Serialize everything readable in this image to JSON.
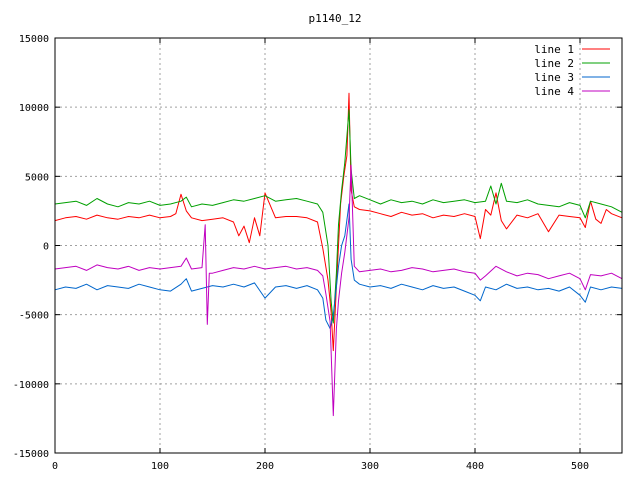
{
  "chart_data": {
    "type": "line",
    "title": "p1140_12",
    "xlabel": "",
    "ylabel": "",
    "xlim": [
      0,
      540
    ],
    "ylim": [
      -15000,
      15000
    ],
    "xticks": [
      0,
      100,
      200,
      300,
      400,
      500
    ],
    "yticks": [
      -15000,
      -10000,
      -5000,
      0,
      5000,
      10000,
      15000
    ],
    "grid": true,
    "legend_position": "top-right",
    "series": [
      {
        "name": "line 1",
        "color": "#ff0000",
        "x": [
          0,
          10,
          20,
          30,
          40,
          50,
          60,
          70,
          80,
          90,
          100,
          110,
          115,
          120,
          125,
          130,
          140,
          150,
          160,
          170,
          175,
          180,
          185,
          190,
          195,
          200,
          210,
          220,
          230,
          240,
          250,
          255,
          260,
          263,
          265,
          268,
          270,
          272,
          275,
          278,
          280,
          282,
          285,
          290,
          300,
          310,
          320,
          330,
          340,
          350,
          360,
          370,
          380,
          390,
          400,
          405,
          410,
          415,
          420,
          425,
          430,
          440,
          450,
          460,
          470,
          480,
          490,
          500,
          505,
          510,
          515,
          520,
          525,
          530,
          540
        ],
        "y": [
          1800,
          2000,
          2100,
          1900,
          2200,
          2000,
          1900,
          2100,
          2000,
          2200,
          2000,
          2100,
          2300,
          3700,
          2500,
          2000,
          1800,
          1900,
          2000,
          1700,
          700,
          1400,
          200,
          2000,
          700,
          3800,
          2000,
          2100,
          2100,
          2000,
          1700,
          -200,
          -2500,
          -4800,
          -7600,
          -3000,
          0,
          3000,
          5000,
          6500,
          11000,
          4000,
          2800,
          2600,
          2500,
          2300,
          2100,
          2400,
          2200,
          2300,
          2000,
          2200,
          2100,
          2300,
          2100,
          500,
          2600,
          2200,
          3800,
          1800,
          1200,
          2200,
          2000,
          2300,
          1000,
          2200,
          2100,
          2000,
          1300,
          3200,
          1900,
          1600,
          2600,
          2300,
          2000
        ]
      },
      {
        "name": "line 2",
        "color": "#00a000",
        "x": [
          0,
          10,
          20,
          30,
          40,
          50,
          60,
          70,
          80,
          90,
          100,
          110,
          120,
          125,
          130,
          140,
          150,
          160,
          170,
          180,
          190,
          200,
          210,
          220,
          230,
          240,
          250,
          255,
          260,
          263,
          265,
          268,
          270,
          273,
          276,
          280,
          282,
          285,
          290,
          300,
          310,
          320,
          330,
          340,
          350,
          360,
          370,
          380,
          390,
          400,
          410,
          415,
          420,
          425,
          430,
          440,
          450,
          460,
          470,
          480,
          490,
          500,
          505,
          510,
          520,
          530,
          540
        ],
        "y": [
          3000,
          3100,
          3200,
          2900,
          3400,
          3000,
          2800,
          3100,
          3000,
          3200,
          2900,
          3000,
          3200,
          3500,
          2800,
          3000,
          2900,
          3100,
          3300,
          3200,
          3400,
          3600,
          3200,
          3300,
          3400,
          3200,
          3000,
          2400,
          0,
          -4000,
          -5600,
          -2000,
          1500,
          4000,
          6000,
          9800,
          5500,
          3400,
          3600,
          3300,
          3000,
          3300,
          3100,
          3200,
          3000,
          3300,
          3100,
          3200,
          3300,
          3100,
          3200,
          4300,
          3000,
          4500,
          3200,
          3100,
          3300,
          3000,
          2900,
          2800,
          3100,
          2900,
          2000,
          3200,
          3000,
          2800,
          2400
        ]
      },
      {
        "name": "line 3",
        "color": "#0066cc",
        "x": [
          0,
          10,
          20,
          30,
          40,
          50,
          60,
          70,
          80,
          90,
          100,
          110,
          120,
          125,
          130,
          140,
          150,
          160,
          170,
          180,
          190,
          200,
          210,
          220,
          230,
          240,
          250,
          255,
          258,
          262,
          265,
          268,
          270,
          273,
          276,
          280,
          282,
          285,
          290,
          300,
          310,
          320,
          330,
          340,
          350,
          360,
          370,
          380,
          390,
          400,
          405,
          410,
          420,
          430,
          440,
          450,
          460,
          470,
          480,
          490,
          500,
          505,
          510,
          520,
          530,
          540
        ],
        "y": [
          -3200,
          -3000,
          -3100,
          -2800,
          -3200,
          -2900,
          -3000,
          -3100,
          -2800,
          -3000,
          -3200,
          -3300,
          -2800,
          -2400,
          -3300,
          -3100,
          -2900,
          -3000,
          -2800,
          -3000,
          -2700,
          -3800,
          -3000,
          -2900,
          -3100,
          -2900,
          -3200,
          -3800,
          -5400,
          -6000,
          -5000,
          -3000,
          -1500,
          0,
          700,
          3000,
          -1000,
          -2500,
          -2800,
          -3000,
          -2900,
          -3100,
          -2800,
          -3000,
          -3200,
          -2900,
          -3100,
          -3000,
          -3300,
          -3600,
          -4000,
          -3000,
          -3200,
          -2800,
          -3100,
          -3000,
          -3200,
          -3100,
          -3300,
          -3000,
          -3600,
          -4100,
          -3000,
          -3200,
          -3000,
          -3100
        ]
      },
      {
        "name": "line 4",
        "color": "#c000c0",
        "x": [
          0,
          10,
          20,
          30,
          40,
          50,
          60,
          70,
          80,
          90,
          100,
          110,
          120,
          125,
          130,
          140,
          143,
          145,
          147,
          150,
          160,
          170,
          180,
          190,
          200,
          210,
          220,
          230,
          240,
          250,
          255,
          258,
          262,
          265,
          268,
          270,
          273,
          276,
          280,
          282,
          285,
          290,
          300,
          310,
          320,
          330,
          340,
          350,
          360,
          370,
          380,
          390,
          400,
          405,
          410,
          420,
          430,
          440,
          450,
          460,
          470,
          480,
          490,
          500,
          505,
          510,
          520,
          530,
          540
        ],
        "y": [
          -1700,
          -1600,
          -1500,
          -1800,
          -1400,
          -1600,
          -1700,
          -1500,
          -1800,
          -1600,
          -1700,
          -1600,
          -1500,
          -900,
          -1700,
          -1600,
          1500,
          -5700,
          -2000,
          -2000,
          -1800,
          -1600,
          -1700,
          -1500,
          -1700,
          -1600,
          -1500,
          -1700,
          -1600,
          -1800,
          -2200,
          -3500,
          -5500,
          -12300,
          -6000,
          -4000,
          -2000,
          -500,
          2000,
          5800,
          -1500,
          -1900,
          -1800,
          -1700,
          -1900,
          -1800,
          -1600,
          -1700,
          -1900,
          -1800,
          -1700,
          -1900,
          -2000,
          -2500,
          -2200,
          -1500,
          -1900,
          -2200,
          -2000,
          -2100,
          -2400,
          -2200,
          -2000,
          -2400,
          -3200,
          -2100,
          -2200,
          -2000,
          -2400
        ]
      }
    ]
  }
}
